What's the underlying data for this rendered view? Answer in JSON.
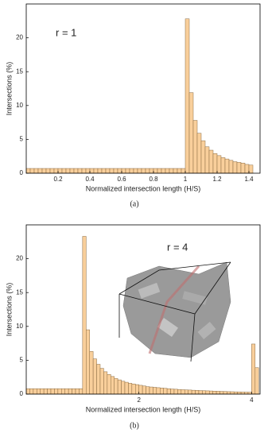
{
  "chart_data": [
    {
      "type": "histogram",
      "annotation": "r = 1",
      "caption": "(a)",
      "xlabel": "Normalized intersection length (H/S)",
      "ylabel": "Intersections (%)",
      "color": "#f9cf9b",
      "edgecolor": "#8a6a40",
      "bins": [
        0,
        0.025,
        0.05,
        0.075,
        0.1,
        0.125,
        0.15,
        0.175,
        0.2,
        0.225,
        0.25,
        0.275,
        0.3,
        0.325,
        0.35,
        0.375,
        0.4,
        0.425,
        0.45,
        0.475,
        0.5,
        0.525,
        0.55,
        0.575,
        0.6,
        0.625,
        0.65,
        0.675,
        0.7,
        0.725,
        0.75,
        0.775,
        0.8,
        0.825,
        0.85,
        0.875,
        0.9,
        0.925,
        0.95,
        0.975,
        1,
        1.025,
        1.05,
        1.075,
        1.1,
        1.125,
        1.15,
        1.175,
        1.2,
        1.225,
        1.25,
        1.275,
        1.3,
        1.325,
        1.35,
        1.375,
        1.4,
        1.425
      ],
      "values": [
        0.7,
        0.7,
        0.7,
        0.7,
        0.7,
        0.7,
        0.7,
        0.7,
        0.7,
        0.7,
        0.7,
        0.7,
        0.7,
        0.7,
        0.7,
        0.7,
        0.7,
        0.7,
        0.7,
        0.7,
        0.7,
        0.7,
        0.7,
        0.7,
        0.7,
        0.7,
        0.7,
        0.7,
        0.7,
        0.7,
        0.7,
        0.7,
        0.7,
        0.7,
        0.7,
        0.7,
        0.7,
        0.7,
        0.7,
        0.7,
        22.8,
        11.9,
        7.8,
        5.9,
        4.8,
        3.9,
        3.4,
        2.9,
        2.6,
        2.3,
        2.1,
        1.9,
        1.7,
        1.6,
        1.5,
        1.3,
        1.2
      ],
      "xlim": [
        0,
        1.47
      ],
      "xticks": [
        0.2,
        0.4,
        0.6,
        0.8,
        1.0,
        1.2,
        1.4
      ],
      "ylim": [
        0,
        25
      ],
      "yticks": [
        0,
        5,
        10,
        15,
        20
      ]
    },
    {
      "type": "histogram",
      "annotation": "r = 4",
      "caption": "(b)",
      "xlabel": "Normalized intersection length (H/S)",
      "ylabel": "Intersections (%)",
      "color": "#f9cf9b",
      "edgecolor": "#8a6a40",
      "bins": [
        0,
        0.0625,
        0.125,
        0.1875,
        0.25,
        0.3125,
        0.375,
        0.4375,
        0.5,
        0.5625,
        0.625,
        0.6875,
        0.75,
        0.8125,
        0.875,
        0.9375,
        1,
        1.0625,
        1.125,
        1.1875,
        1.25,
        1.3125,
        1.375,
        1.4375,
        1.5,
        1.5625,
        1.625,
        1.6875,
        1.75,
        1.8125,
        1.875,
        1.9375,
        2,
        2.0625,
        2.125,
        2.1875,
        2.25,
        2.3125,
        2.375,
        2.4375,
        2.5,
        2.5625,
        2.625,
        2.6875,
        2.75,
        2.8125,
        2.875,
        2.9375,
        3,
        3.0625,
        3.125,
        3.1875,
        3.25,
        3.3125,
        3.375,
        3.4375,
        3.5,
        3.5625,
        3.625,
        3.6875,
        3.75,
        3.8125,
        3.875,
        3.9375,
        4,
        4.0625,
        4.125
      ],
      "values": [
        0.8,
        0.8,
        0.8,
        0.8,
        0.8,
        0.8,
        0.8,
        0.8,
        0.8,
        0.8,
        0.8,
        0.8,
        0.8,
        0.8,
        0.8,
        0.8,
        23.3,
        9.5,
        6.3,
        5.2,
        4.4,
        3.8,
        3.3,
        2.9,
        2.6,
        2.3,
        2.1,
        1.9,
        1.75,
        1.6,
        1.5,
        1.4,
        1.3,
        1.2,
        1.1,
        1.05,
        1.0,
        0.95,
        0.9,
        0.85,
        0.8,
        0.75,
        0.72,
        0.68,
        0.65,
        0.62,
        0.6,
        0.57,
        0.55,
        0.52,
        0.5,
        0.48,
        0.46,
        0.44,
        0.42,
        0.4,
        0.38,
        0.36,
        0.35,
        0.33,
        0.32,
        0.3,
        0.29,
        0.28,
        7.4,
        3.9
      ],
      "xlim": [
        0,
        4.15
      ],
      "xticks": [
        2,
        4
      ],
      "ylim": [
        0,
        25
      ],
      "yticks": [
        0,
        5,
        10,
        15,
        20
      ]
    }
  ]
}
